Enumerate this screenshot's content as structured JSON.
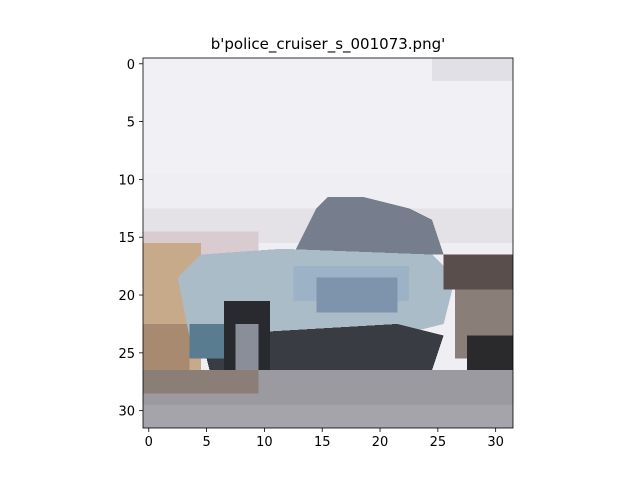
{
  "chart_data": {
    "type": "image",
    "title": "b'police_cruiser_s_001073.png'",
    "xlim": [
      -0.5,
      31.5
    ],
    "ylim": [
      31.5,
      -0.5
    ],
    "xticks": [
      0,
      5,
      10,
      15,
      20,
      25,
      30
    ],
    "yticks": [
      0,
      5,
      10,
      15,
      20,
      25,
      30
    ]
  }
}
